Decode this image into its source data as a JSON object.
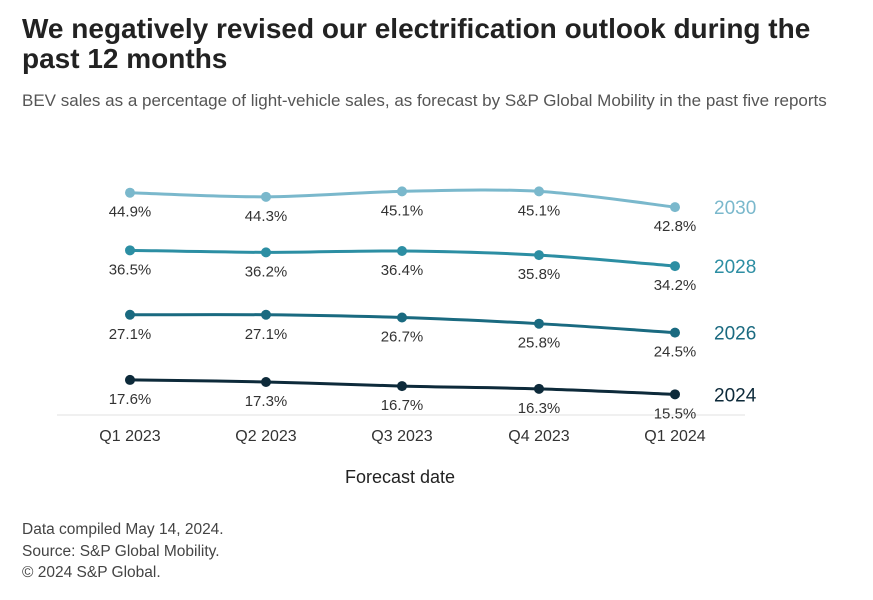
{
  "title": "We negatively revised our electrification outlook during the past 12 months",
  "subtitle": "BEV sales as a percentage of light-vehicle sales, as forecast by S&P Global Mobility in the past five reports",
  "footer": {
    "line1": "Data compiled May 14, 2024.",
    "line2": "Source: S&P Global Mobility.",
    "line3": "© 2024 S&P Global."
  },
  "chart_data": {
    "type": "line",
    "categories": [
      "Q1 2023",
      "Q2 2023",
      "Q3 2023",
      "Q4 2023",
      "Q1 2024"
    ],
    "xlabel": "Forecast date",
    "ylabel": "",
    "unit": "%",
    "grid": false,
    "legend": "direct labels at right end of each line",
    "series": [
      {
        "name": "2030",
        "color": "#7ab8cc",
        "values": [
          44.9,
          44.3,
          45.1,
          45.1,
          42.8
        ]
      },
      {
        "name": "2028",
        "color": "#2c8ea3",
        "values": [
          36.5,
          36.2,
          36.4,
          35.8,
          34.2
        ]
      },
      {
        "name": "2026",
        "color": "#1a6a80",
        "values": [
          27.1,
          27.1,
          26.7,
          25.8,
          24.5
        ]
      },
      {
        "name": "2024",
        "color": "#0d2a3a",
        "values": [
          17.6,
          17.3,
          16.7,
          16.3,
          15.5
        ]
      }
    ]
  }
}
